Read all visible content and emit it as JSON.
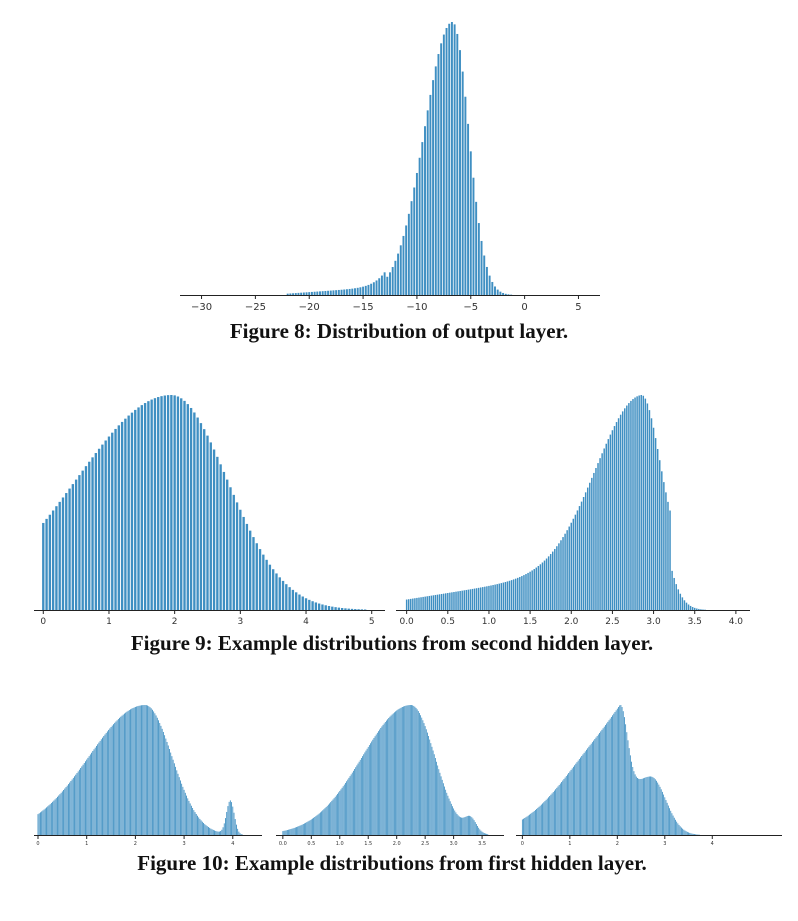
{
  "captions": {
    "fig8": "Figure 8: Distribution of output layer.",
    "fig9": "Figure 9: Example distributions from second hidden layer.",
    "fig10": "Figure 10: Example distributions from first hidden layer."
  },
  "colors": {
    "bar": "#3f8fc2",
    "axis": "#222222"
  },
  "chart_data": [
    {
      "id": "fig8",
      "type": "bar",
      "title": "",
      "xlabel": "",
      "ylabel": "",
      "xlim": [
        -32,
        7
      ],
      "ticks": [
        -30,
        -25,
        -20,
        -15,
        -10,
        -5,
        0,
        5
      ],
      "tick_labels": [
        "−30",
        "−25",
        "−20",
        "−15",
        "−10",
        "−5",
        "0",
        "5"
      ],
      "grid": false,
      "bins": {
        "start": -22,
        "end": 5,
        "step": 0.25
      },
      "shape": [
        {
          "kind": "gauss",
          "mu": -6.7,
          "s_left": 2.6,
          "s_right": 1.5,
          "amp": 1.0
        },
        {
          "kind": "tail",
          "from": -22,
          "to": -13,
          "amp": 0.05
        }
      ]
    },
    {
      "id": "fig9a",
      "type": "bar",
      "title": "",
      "xlim": [
        -0.05,
        5.05
      ],
      "ticks": [
        0,
        1,
        2,
        3,
        4,
        5
      ],
      "tick_labels": [
        "0",
        "1",
        "2",
        "3",
        "4",
        "5"
      ],
      "grid": false,
      "bins": {
        "start": 0,
        "end": 4.9,
        "step": 0.05
      },
      "shape": [
        {
          "kind": "gauss",
          "mu": 1.95,
          "s_left": 1.45,
          "s_right": 0.85,
          "amp": 1.0
        }
      ]
    },
    {
      "id": "fig9b",
      "type": "bar",
      "title": "",
      "xlim": [
        -0.02,
        4.05
      ],
      "ticks": [
        0.0,
        0.5,
        1.0,
        1.5,
        2.0,
        2.5,
        3.0,
        3.5,
        4.0
      ],
      "tick_labels": [
        "0.0",
        "0.5",
        "1.0",
        "1.5",
        "2.0",
        "2.5",
        "3.0",
        "3.5",
        "4.0"
      ],
      "grid": false,
      "bins": {
        "start": 0,
        "end": 3.7,
        "step": 0.025
      },
      "shape": [
        {
          "kind": "gauss",
          "mu": 2.85,
          "s_left": 0.55,
          "s_right": 0.22,
          "amp": 0.8
        },
        {
          "kind": "linear",
          "from": 0,
          "to": 3.2,
          "a": 0.05,
          "b": 0.25
        }
      ]
    },
    {
      "id": "fig10a",
      "type": "bar",
      "title": "",
      "xlim": [
        0,
        4.6
      ],
      "ticks": [
        0,
        1,
        2,
        3,
        4
      ],
      "tick_labels": [
        "0",
        "1",
        "2",
        "3",
        "4"
      ],
      "grid": false,
      "bins": {
        "start": 0,
        "end": 4.3,
        "step": 0.025
      },
      "shape": [
        {
          "kind": "gauss",
          "mu": 2.2,
          "s_left": 1.15,
          "s_right": 0.55,
          "amp": 1.0
        },
        {
          "kind": "gauss",
          "mu": 3.95,
          "s_left": 0.08,
          "s_right": 0.08,
          "amp": 0.26
        }
      ]
    },
    {
      "id": "fig10b",
      "type": "bar",
      "title": "",
      "xlim": [
        -0.05,
        3.85
      ],
      "ticks": [
        0.0,
        0.5,
        1.0,
        1.5,
        2.0,
        2.5,
        3.0,
        3.5
      ],
      "tick_labels": [
        "0.0",
        "0.5",
        "1.0",
        "1.5",
        "2.0",
        "2.5",
        "3.0",
        "3.5"
      ],
      "grid": false,
      "bins": {
        "start": 0,
        "end": 3.6,
        "step": 0.02
      },
      "shape": [
        {
          "kind": "gauss",
          "mu": 2.25,
          "s_left": 0.85,
          "s_right": 0.42,
          "amp": 1.0
        },
        {
          "kind": "gauss",
          "mu": 3.3,
          "s_left": 0.1,
          "s_right": 0.1,
          "amp": 0.1
        }
      ]
    },
    {
      "id": "fig10c",
      "type": "bar",
      "title": "",
      "xlim": [
        -0.05,
        4.9
      ],
      "ticks": [
        0,
        1,
        2,
        3,
        4
      ],
      "tick_labels": [
        "0",
        "1",
        "2",
        "3",
        "4"
      ],
      "grid": false,
      "bins": {
        "start": 0,
        "end": 4.75,
        "step": 0.025
      },
      "shape": [
        {
          "kind": "gauss",
          "mu": 2.05,
          "s_left": 1.05,
          "s_right": 0.16,
          "amp": 0.75
        },
        {
          "kind": "gauss",
          "mu": 2.7,
          "s_left": 0.5,
          "s_right": 0.32,
          "amp": 0.42
        }
      ]
    }
  ]
}
